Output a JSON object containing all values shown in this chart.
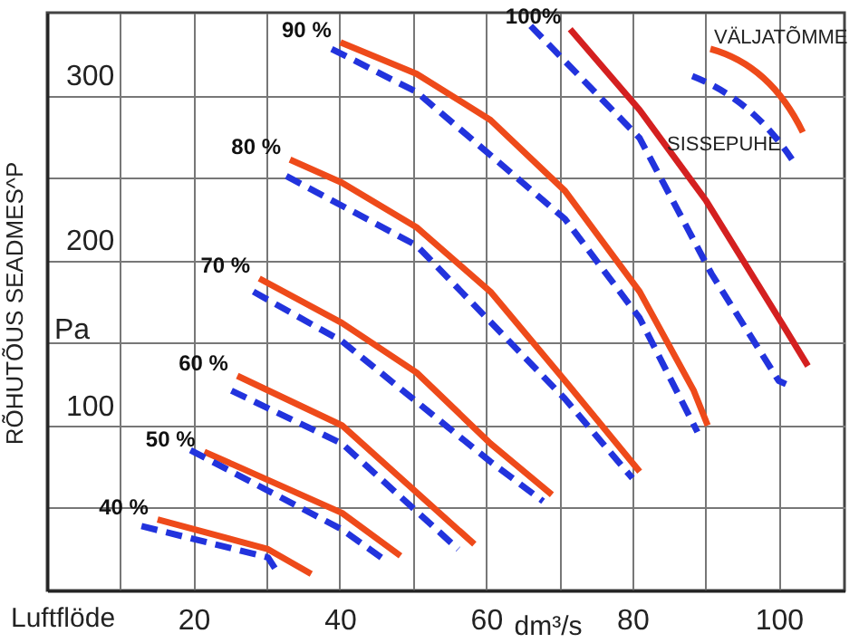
{
  "chart_data": {
    "type": "line",
    "ylabel": "RÕHUTÕUS SEADMES^P",
    "xlabel": "dm³/s",
    "annotations": [
      "Luftflöde",
      "Pa",
      "VÄLJATÕMME",
      "SISSEPUHE"
    ],
    "xlim": [
      0,
      109
    ],
    "ylim": [
      0,
      350
    ],
    "xticks": [
      {
        "value": 10,
        "label": null
      },
      20,
      {
        "value": 30,
        "label": null
      },
      40,
      {
        "value": 50,
        "label": null
      },
      60,
      {
        "value": 70,
        "label": null
      },
      80,
      {
        "value": 90,
        "label": null
      },
      100
    ],
    "yticks": [
      {
        "value": 50,
        "label": null
      },
      100,
      {
        "value": 150,
        "label": null
      },
      200,
      {
        "value": 250,
        "label": null
      },
      300
    ],
    "grid": true,
    "series": [
      {
        "name": "40 %",
        "color": "#ee4a1a",
        "line_style": "solid",
        "x": [
          15.1,
          30.2,
          36.1
        ],
        "values": [
          43,
          25,
          10
        ]
      },
      {
        "color": "#2233dd",
        "line_style": "dashed",
        "x": [
          12.9,
          30.2,
          31.2
        ],
        "values": [
          39,
          20,
          13
        ]
      },
      {
        "name": "50 %",
        "color": "#ee4a1a",
        "line_style": "solid",
        "x": [
          21.5,
          40.3,
          48.3
        ],
        "values": [
          84,
          47,
          21
        ]
      },
      {
        "color": "#2233dd",
        "line_style": "dashed",
        "x": [
          19.6,
          40.3,
          46.3
        ],
        "values": [
          85,
          37,
          18
        ]
      },
      {
        "name": "60 %",
        "color": "#ee4a1a",
        "line_style": "solid",
        "x": [
          26,
          40.3,
          58.4
        ],
        "values": [
          130,
          100,
          28
        ]
      },
      {
        "color": "#2233dd",
        "line_style": "dashed",
        "x": [
          25.2,
          40.3,
          56.2
        ],
        "values": [
          121,
          89,
          25
        ]
      },
      {
        "name": "70 %",
        "color": "#ee4a1a",
        "line_style": "solid",
        "x": [
          29,
          40.3,
          50.5,
          60.6,
          69
        ],
        "values": [
          189,
          162,
          132,
          89,
          58
        ]
      },
      {
        "color": "#2233dd",
        "line_style": "dashed",
        "x": [
          28.2,
          40.3,
          60.6,
          67.8
        ],
        "values": [
          181,
          151,
          78,
          54
        ]
      },
      {
        "name": "80 %",
        "color": "#ee4a1a",
        "line_style": "solid",
        "x": [
          33.2,
          40.3,
          50.5,
          60.6,
          70.8,
          81
        ],
        "values": [
          261,
          247,
          220,
          181,
          127,
          72
        ]
      },
      {
        "color": "#2233dd",
        "line_style": "dashed",
        "x": [
          32.7,
          50.5,
          70.8,
          80
        ],
        "values": [
          251,
          209,
          116,
          68
        ]
      },
      {
        "name": "90 %",
        "color": "#ee4a1a",
        "line_style": "solid",
        "x": [
          40.1,
          50.5,
          60.6,
          70.8,
          81,
          88.4,
          90.3
        ],
        "values": [
          332,
          313,
          285,
          242,
          181,
          121,
          100
        ]
      },
      {
        "color": "#2233dd",
        "line_style": "dashed",
        "x": [
          38.9,
          50.5,
          70.8,
          81,
          88.9
        ],
        "values": [
          328,
          302,
          225,
          165,
          96
        ]
      },
      {
        "name": "100%",
        "color": "#d42020",
        "line_style": "solid",
        "x": [
          71.5,
          81,
          90.1,
          100.7,
          104
        ],
        "values": [
          340,
          291,
          236,
          160,
          136
        ]
      },
      {
        "color": "#2233dd",
        "line_style": "dashed",
        "x": [
          66.1,
          81,
          90.8,
          100,
          101
        ],
        "values": [
          342,
          274,
          192,
          127,
          125
        ]
      }
    ]
  }
}
